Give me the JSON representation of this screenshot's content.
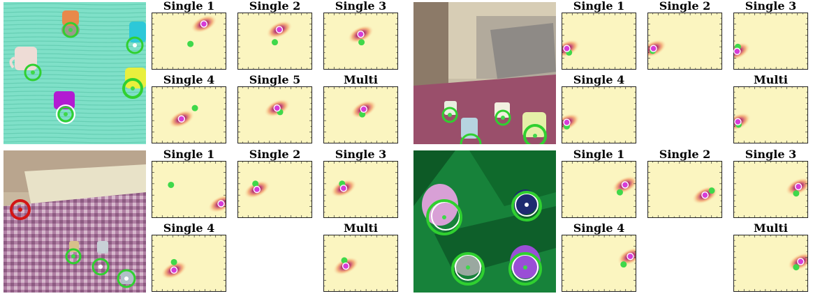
{
  "colors": {
    "heatmap_background": "#fbf5c0",
    "heatmap_peak": "#2a0a4a",
    "heatmap_mid": "#b0256e",
    "heatmap_low": "#f08a57",
    "predicted_marker": "#d63bd8",
    "ground_truth_marker": "#3fd84a",
    "correct_ring": "#30d030",
    "wrong_ring": "#d31515"
  },
  "quadrants": [
    {
      "scene": "top-down mugs on turquoise table",
      "panels": [
        {
          "label": "Single 1",
          "pred": [
            0.7,
            0.2
          ],
          "gt": [
            0.52,
            0.55
          ]
        },
        {
          "label": "Single 2",
          "pred": [
            0.56,
            0.3
          ],
          "gt": [
            0.5,
            0.52
          ]
        },
        {
          "label": "Single 3",
          "pred": [
            0.5,
            0.38
          ],
          "gt": [
            0.51,
            0.52
          ]
        },
        {
          "label": "Single 4",
          "pred": [
            0.4,
            0.57
          ],
          "gt": [
            0.58,
            0.38
          ]
        },
        {
          "label": "Single 5",
          "pred": [
            0.53,
            0.38
          ],
          "gt": [
            0.57,
            0.45
          ]
        },
        {
          "label": "Multi",
          "pred": [
            0.54,
            0.4
          ],
          "gt": [
            0.52,
            0.49
          ]
        }
      ]
    },
    {
      "scene": "bedroom mugs on bed",
      "panels": [
        {
          "label": "Single 1",
          "pred": [
            0.07,
            0.63
          ],
          "gt": [
            0.1,
            0.7
          ]
        },
        {
          "label": "Single 2",
          "pred": [
            0.08,
            0.63
          ],
          "gt": [
            0.07,
            0.67
          ]
        },
        {
          "label": "Single 3",
          "pred": [
            0.05,
            0.68
          ],
          "gt": [
            0.06,
            0.6
          ]
        },
        {
          "label": "Single 4",
          "pred": [
            0.07,
            0.63
          ],
          "gt": [
            0.07,
            0.7
          ]
        },
        {
          "label": "Multi",
          "pred": [
            0.06,
            0.62
          ],
          "gt": [
            0.07,
            0.67
          ]
        }
      ]
    },
    {
      "scene": "bedroom mugs on patterned floor",
      "panels": [
        {
          "label": "Single 1",
          "pred": [
            0.93,
            0.75
          ],
          "gt": [
            0.26,
            0.42
          ]
        },
        {
          "label": "Single 2",
          "pred": [
            0.26,
            0.5
          ],
          "gt": [
            0.24,
            0.4
          ]
        },
        {
          "label": "Single 3",
          "pred": [
            0.27,
            0.48
          ],
          "gt": [
            0.25,
            0.4
          ]
        },
        {
          "label": "Single 4",
          "pred": [
            0.3,
            0.62
          ],
          "gt": [
            0.3,
            0.48
          ]
        },
        {
          "label": "Multi",
          "pred": [
            0.3,
            0.55
          ],
          "gt": [
            0.28,
            0.45
          ]
        }
      ]
    },
    {
      "scene": "top-down mugs on green cloth",
      "panels": [
        {
          "label": "Single 1",
          "pred": [
            0.85,
            0.42
          ],
          "gt": [
            0.78,
            0.55
          ]
        },
        {
          "label": "Single 2",
          "pred": [
            0.77,
            0.6
          ],
          "gt": [
            0.86,
            0.52
          ]
        },
        {
          "label": "Single 3",
          "pred": [
            0.87,
            0.45
          ],
          "gt": [
            0.84,
            0.57
          ]
        },
        {
          "label": "Single 4",
          "pred": [
            0.92,
            0.38
          ],
          "gt": [
            0.83,
            0.52
          ]
        },
        {
          "label": "Multi",
          "pred": [
            0.9,
            0.47
          ],
          "gt": [
            0.84,
            0.57
          ]
        }
      ]
    }
  ]
}
